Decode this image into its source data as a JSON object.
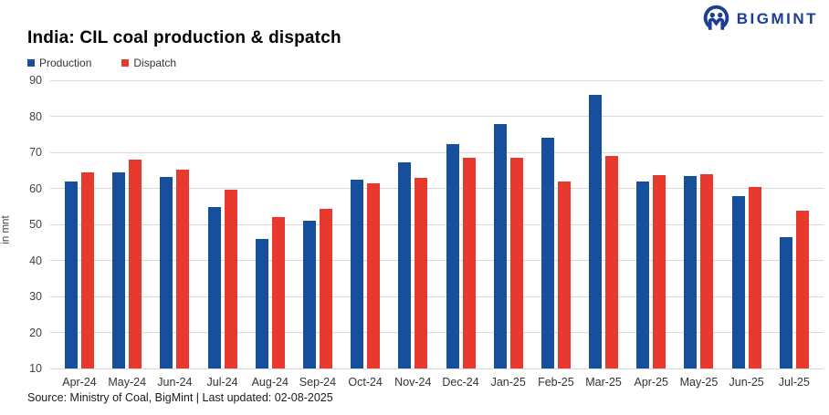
{
  "logo": {
    "text": "BIGMINT",
    "color": "#1b3e94",
    "icon": "bigmint-people-m-icon"
  },
  "header": {
    "title": "India: CIL coal production & dispatch"
  },
  "legend": [
    {
      "label": "Production",
      "color": "#164f9c"
    },
    {
      "label": "Dispatch",
      "color": "#e8392f"
    }
  ],
  "chart_data": {
    "type": "bar",
    "title": "India: CIL coal production & dispatch",
    "categories": [
      "Apr-24",
      "May-24",
      "Jun-24",
      "Jul-24",
      "Aug-24",
      "Sep-24",
      "Oct-24",
      "Nov-24",
      "Dec-24",
      "Jan-25",
      "Feb-25",
      "Mar-25",
      "Apr-25",
      "May-25",
      "Jun-25",
      "Jul-25"
    ],
    "series": [
      {
        "name": "Production",
        "color": "#164f9c",
        "values": [
          61.8,
          64.4,
          63.1,
          54.9,
          46.0,
          50.9,
          62.5,
          67.2,
          72.4,
          77.8,
          74.1,
          85.9,
          62.0,
          63.4,
          57.8,
          46.4
        ]
      },
      {
        "name": "Dispatch",
        "color": "#e8392f",
        "values": [
          64.4,
          68.0,
          65.3,
          59.5,
          52.0,
          54.4,
          61.4,
          63.0,
          68.5,
          68.6,
          62.0,
          69.0,
          63.6,
          64.0,
          60.4,
          53.7
        ]
      }
    ],
    "xlabel": "",
    "ylabel": "in mnt",
    "ylim": [
      10,
      90
    ],
    "yticks": [
      90,
      80,
      70,
      60,
      50,
      40,
      30,
      20,
      10
    ],
    "grid": true,
    "gridline_color": "#d9d9d9",
    "legend_position": "top-left"
  },
  "footer": {
    "source": "Source: Ministry of Coal, BigMint | Last updated: 02-08-2025"
  }
}
